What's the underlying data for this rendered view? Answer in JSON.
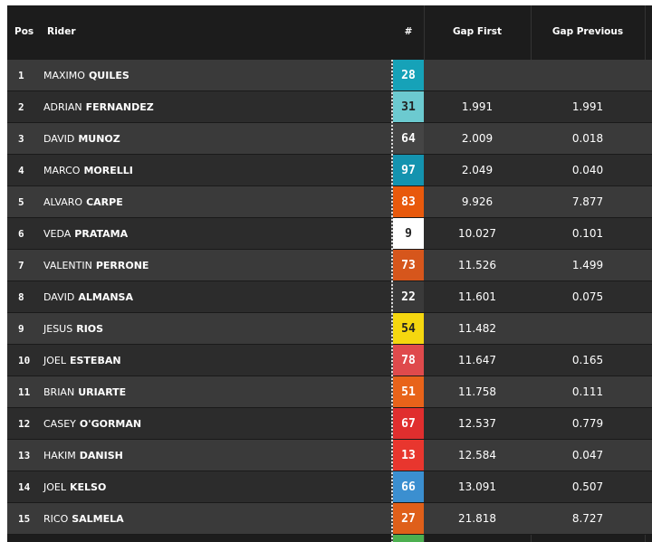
{
  "header": {
    "columns": [
      "Pos",
      "Rider",
      "#",
      "Gap First",
      "Gap Previous"
    ]
  },
  "table": {
    "rows": [
      {
        "pos": "1",
        "first": "MAXIMO",
        "last": "QUILES",
        "number": "28",
        "color": "#16a2b8",
        "gap_first": null,
        "gap_previous": null
      },
      {
        "pos": "2",
        "first": "ADRIAN",
        "last": "FERNANDEZ",
        "number": "31",
        "color": "#6ccad0",
        "gap_first": "1.991",
        "gap_previous": "1.991"
      },
      {
        "pos": "3",
        "first": "DAVID",
        "last": "MUNOZ",
        "number": "64",
        "color": "#454545",
        "gap_first": "2.009",
        "gap_previous": "0.018"
      },
      {
        "pos": "4",
        "first": "MARCO",
        "last": "MORELLI",
        "number": "97",
        "color": "#1493af",
        "gap_first": "2.049",
        "gap_previous": "0.040"
      },
      {
        "pos": "5",
        "first": "ALVARO",
        "last": "CARPE",
        "number": "83",
        "color": "#e8590c",
        "gap_first": "9.926",
        "gap_previous": "7.877"
      },
      {
        "pos": "6",
        "first": "VEDA",
        "last": "PRATAMA",
        "number": "9",
        "color": "#ffffff",
        "gap_first": "10.027",
        "gap_previous": "0.101"
      },
      {
        "pos": "7",
        "first": "VALENTIN",
        "last": "PERRONE",
        "number": "73",
        "color": "#d6561c",
        "gap_first": "11.526",
        "gap_previous": "1.499"
      },
      {
        "pos": "8",
        "first": "DAVID",
        "last": "ALMANSA",
        "number": "22",
        "color": "#3a3a3a",
        "gap_first": "11.601",
        "gap_previous": "0.075"
      },
      {
        "pos": "9",
        "first": "JESUS",
        "last": "RIOS",
        "number": "54",
        "color": "#f5d70f",
        "gap_first": "11.482",
        "gap_previous": null
      },
      {
        "pos": "10",
        "first": "JOEL",
        "last": "ESTEBAN",
        "number": "78",
        "color": "#df4a4c",
        "gap_first": "11.647",
        "gap_previous": "0.165"
      },
      {
        "pos": "11",
        "first": "BRIAN",
        "last": "URIARTE",
        "number": "51",
        "color": "#e8631a",
        "gap_first": "11.758",
        "gap_previous": "0.111"
      },
      {
        "pos": "12",
        "first": "CASEY",
        "last": "O'GORMAN",
        "number": "67",
        "color": "#e02e2e",
        "gap_first": "12.537",
        "gap_previous": "0.779"
      },
      {
        "pos": "13",
        "first": "HAKIM",
        "last": "DANISH",
        "number": "13",
        "color": "#e8362e",
        "gap_first": "12.584",
        "gap_previous": "0.047"
      },
      {
        "pos": "14",
        "first": "JOEL",
        "last": "KELSO",
        "number": "66",
        "color": "#3b8fd0",
        "gap_first": "13.091",
        "gap_previous": "0.507"
      },
      {
        "pos": "15",
        "first": "RICO",
        "last": "SALMELA",
        "number": "27",
        "color": "#df5f1a",
        "gap_first": "21.818",
        "gap_previous": "8.727"
      }
    ]
  }
}
